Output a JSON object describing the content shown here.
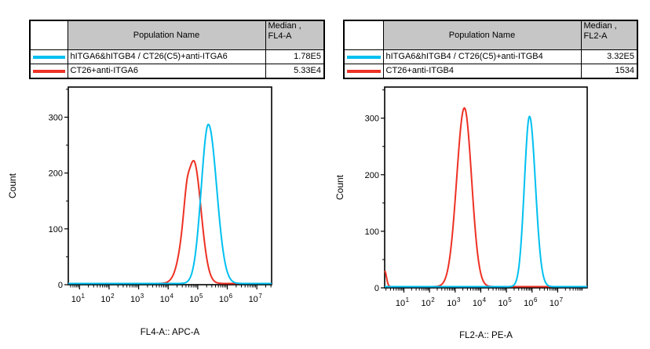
{
  "colors": {
    "cyan": "#00C0F0",
    "red": "#EE3124",
    "table_header_bg": "#C6C6C6",
    "axis": "#000000",
    "background": "#FFFFFF"
  },
  "left_panel": {
    "table": {
      "headers": {
        "population": "Population Name",
        "median_line1": "Median ,",
        "median_line2": "FL4-A"
      },
      "rows": [
        {
          "key": "cyan",
          "name": "hITGA6&hITGB4 / CT26(C5)+anti-ITGA6",
          "median": "1.78E5"
        },
        {
          "key": "red",
          "name": "CT26+anti-ITGA6",
          "median": "5.33E4"
        }
      ]
    }
  },
  "right_panel": {
    "table": {
      "headers": {
        "population": "Population Name",
        "median_line1": "Median ,",
        "median_line2": "FL2-A"
      },
      "rows": [
        {
          "key": "cyan",
          "name": "hITGA6&hITGB4 / CT26(C5)+anti-ITGB4",
          "median": "3.32E5"
        },
        {
          "key": "red",
          "name": "CT26+anti-ITGB4",
          "median": "1534"
        }
      ]
    }
  },
  "chart_data": [
    {
      "type": "line",
      "subtype": "flow-histogram-overlay",
      "xlabel": "FL4-A:: APC-A",
      "ylabel": "Count",
      "x_scale": "log10",
      "x_tick_base": "10",
      "x_ticks_log10": [
        1,
        2,
        3,
        4,
        5,
        6,
        7
      ],
      "xlim_log10": [
        0.62,
        7.5
      ],
      "y_ticks": [
        0,
        100,
        200,
        300
      ],
      "y_minor_step": 50,
      "ylim": [
        0,
        354
      ],
      "grid": false,
      "legend": "none",
      "series": [
        {
          "key": "red",
          "name": "CT26+anti-ITGA6",
          "color": "#EE3124",
          "median_value": "5.33E4",
          "components": [
            {
              "peak_log10_x": 4.86,
              "peak_height": 220,
              "sigma_left": 0.3,
              "sigma_right": 0.25
            },
            {
              "peak_log10_x": 4.62,
              "peak_height": 20,
              "sigma_left": 0.09,
              "sigma_right": 0.07
            }
          ]
        },
        {
          "key": "cyan",
          "name": "hITGA6&hITGB4 / CT26(C5)+anti-ITGA6",
          "color": "#00C0F0",
          "median_value": "1.78E5",
          "components": [
            {
              "peak_log10_x": 5.36,
              "peak_height": 285,
              "sigma_left": 0.24,
              "sigma_right": 0.28
            }
          ]
        }
      ]
    },
    {
      "type": "line",
      "subtype": "flow-histogram-overlay",
      "xlabel": "FL2-A:: PE-A",
      "ylabel": "Count",
      "x_scale": "log10",
      "x_tick_base": "10",
      "x_ticks_log10": [
        1,
        2,
        3,
        4,
        5,
        6,
        7
      ],
      "xlim_log10": [
        0.25,
        8.15
      ],
      "y_ticks": [
        0,
        100,
        200,
        300
      ],
      "y_minor_step": 50,
      "ylim": [
        0,
        355
      ],
      "grid": false,
      "legend": "none",
      "series": [
        {
          "key": "red",
          "name": "CT26+anti-ITGB4",
          "color": "#EE3124",
          "median_value": "1534",
          "components": [
            {
              "peak_log10_x": 3.36,
              "peak_height": 316,
              "sigma_left": 0.3,
              "sigma_right": 0.28
            },
            {
              "peak_log10_x": 0.25,
              "peak_height": 28,
              "sigma_left": 0.02,
              "sigma_right": 0.07
            }
          ]
        },
        {
          "key": "cyan",
          "name": "hITGA6&hITGB4 / CT26(C5)+anti-ITGB4",
          "color": "#00C0F0",
          "median_value": "3.32E5",
          "components": [
            {
              "peak_log10_x": 5.9,
              "peak_height": 301,
              "sigma_left": 0.2,
              "sigma_right": 0.23
            }
          ]
        }
      ]
    }
  ]
}
